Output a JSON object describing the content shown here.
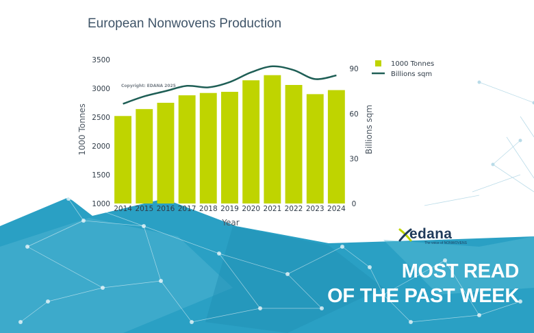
{
  "title": "European Nonwovens Production",
  "copyright": "Copyright: EDANA 2025",
  "logo": {
    "name": "edana",
    "tagline": "The voice of NONWOVENS"
  },
  "banner": {
    "line1": "MOST READ",
    "line2": "OF THE PAST WEEK"
  },
  "colors": {
    "bar": "#bfd400",
    "line": "#1e5e55",
    "title": "#3f5468",
    "network": "#2aa0c4"
  },
  "chart_data": {
    "type": "bar",
    "title": "European Nonwovens Production",
    "xlabel": "Year",
    "ylabel": "1000 Tonnes",
    "y2label": "Billions sqm",
    "categories": [
      "2014",
      "2015",
      "2016",
      "2017",
      "2018",
      "2019",
      "2020",
      "2021",
      "2022",
      "2023",
      "2024"
    ],
    "ylim": [
      1000,
      3500
    ],
    "y_ticks": [
      "1000",
      "1500",
      "2000",
      "2500",
      "3000",
      "3500"
    ],
    "y2lim": [
      0,
      96
    ],
    "y2_ticks": [
      "0",
      "30",
      "60",
      "90"
    ],
    "legend_position": "top-right",
    "series": [
      {
        "name": "1000 Tonnes",
        "type": "bar",
        "axis": "left",
        "values": [
          2520,
          2640,
          2750,
          2880,
          2920,
          2940,
          3140,
          3230,
          3060,
          2900,
          2970
        ]
      },
      {
        "name": "Billions sqm",
        "type": "line",
        "axis": "right",
        "values": [
          66.5,
          71.5,
          75,
          78.5,
          77.5,
          81,
          87.5,
          91.5,
          89,
          83,
          85.5
        ]
      }
    ]
  }
}
